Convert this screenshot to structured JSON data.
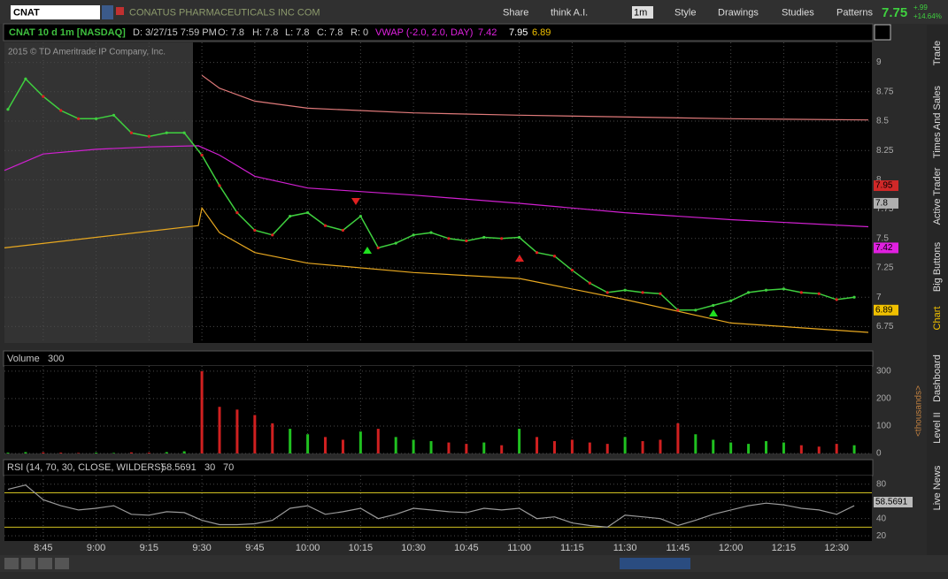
{
  "toolbar": {
    "symbol": "CNAT",
    "company": "CONATUS PHARMACEUTICALS INC COM",
    "buttons": [
      "Share",
      "think A.I.",
      "1m",
      "Style",
      "Drawings",
      "Studies",
      "Patterns"
    ],
    "last": "7.75",
    "change": "+.99",
    "change_pct": "+14.64%"
  },
  "header": {
    "title": "CNAT 10 d 1m [NASDAQ]",
    "date": "D: 3/27/15 7:59 PM",
    "open": "O: 7.8",
    "high": "H: 7.8",
    "low": "L: 7.8",
    "close": "C: 7.8",
    "range": "R: 0",
    "study": "VWAP (-2.0, 2.0, DAY)",
    "study_values": [
      7.42,
      7.95,
      6.89
    ]
  },
  "watermark": "2015 © TD Ameritrade IP Company, Inc.",
  "side_tabs": [
    "Trade",
    "Times And Sales",
    "Active Trader",
    "Big Buttons",
    "Chart",
    "Dashboard",
    "Level II",
    "Live News"
  ],
  "time_axis": {
    "xlim": [
      514,
      760
    ],
    "xticks": [
      {
        "value": 525,
        "label": "8:45"
      },
      {
        "value": 540,
        "label": "9:00"
      },
      {
        "value": 555,
        "label": "9:15"
      },
      {
        "value": 570,
        "label": "9:30"
      },
      {
        "value": 585,
        "label": "9:45"
      },
      {
        "value": 600,
        "label": "10:00"
      },
      {
        "value": 615,
        "label": "10:15"
      },
      {
        "value": 630,
        "label": "10:30"
      },
      {
        "value": 645,
        "label": "10:45"
      },
      {
        "value": 660,
        "label": "11:00"
      },
      {
        "value": 675,
        "label": "11:15"
      },
      {
        "value": 690,
        "label": "11:30"
      },
      {
        "value": 705,
        "label": "11:45"
      },
      {
        "value": 720,
        "label": "12:00"
      },
      {
        "value": 735,
        "label": "12:15"
      },
      {
        "value": 750,
        "label": "12:30"
      }
    ]
  },
  "price_panel": {
    "ylim": [
      6.61,
      9.17
    ],
    "yticks": [
      9,
      8.75,
      8.5,
      8.25,
      8,
      7.75,
      7.5,
      7.25,
      7,
      6.75
    ],
    "x": [
      515,
      520,
      525,
      530,
      535,
      540,
      545,
      550,
      555,
      560,
      565,
      570,
      575,
      580,
      585,
      590,
      595,
      600,
      605,
      610,
      615,
      620,
      625,
      630,
      635,
      640,
      645,
      650,
      655,
      660,
      665,
      670,
      675,
      680,
      685,
      690,
      695,
      700,
      705,
      710,
      715,
      720,
      725,
      730,
      735,
      740,
      745,
      750,
      755
    ],
    "close": [
      8.6,
      8.86,
      8.71,
      8.59,
      8.52,
      8.52,
      8.55,
      8.4,
      8.37,
      8.4,
      8.4,
      8.21,
      7.95,
      7.72,
      7.57,
      7.53,
      7.69,
      7.72,
      7.61,
      7.57,
      7.69,
      7.42,
      7.46,
      7.53,
      7.55,
      7.5,
      7.48,
      7.51,
      7.5,
      7.51,
      7.38,
      7.35,
      7.23,
      7.12,
      7.04,
      7.06,
      7.04,
      7.03,
      6.89,
      6.89,
      6.93,
      6.97,
      7.04,
      7.06,
      7.07,
      7.04,
      7.03,
      6.98,
      7.0
    ],
    "bands": [
      {
        "color": "#e07a7a",
        "x": [
          570,
          575,
          585,
          600,
          630,
          660,
          720,
          759
        ],
        "values": [
          8.89,
          8.78,
          8.67,
          8.61,
          8.57,
          8.55,
          8.52,
          8.51
        ]
      },
      {
        "color": "#d020d0",
        "x": [
          514,
          525,
          540,
          555,
          569,
          575,
          585,
          600,
          630,
          660,
          690,
          720,
          759
        ],
        "values": [
          8.08,
          8.22,
          8.26,
          8.28,
          8.29,
          8.21,
          8.03,
          7.93,
          7.87,
          7.8,
          7.72,
          7.66,
          7.6
        ]
      },
      {
        "color": "#e8a820",
        "x": [
          514,
          569,
          570,
          575,
          585,
          600,
          630,
          660,
          690,
          720,
          759
        ],
        "values": [
          7.42,
          7.61,
          7.76,
          7.55,
          7.38,
          7.29,
          7.21,
          7.16,
          6.98,
          6.78,
          6.7
        ]
      }
    ],
    "markers": [
      {
        "value": 7.95,
        "color": "#d02828"
      },
      {
        "value": 7.8,
        "color": "#b0b0b0"
      },
      {
        "value": 7.42,
        "color": "#e020e0"
      },
      {
        "value": 6.89,
        "color": "#f0c000"
      }
    ]
  },
  "volume_panel": {
    "title": "Volume",
    "title_value": "300",
    "unit": "<thousands>",
    "ylim": [
      0,
      319
    ],
    "yticks": [
      0,
      100,
      200,
      300
    ],
    "values": [
      3,
      5,
      4,
      3,
      2,
      3,
      2,
      4,
      3,
      5,
      8,
      300,
      170,
      160,
      140,
      110,
      90,
      70,
      60,
      50,
      80,
      90,
      60,
      50,
      45,
      40,
      35,
      40,
      30,
      90,
      60,
      45,
      50,
      40,
      35,
      60,
      45,
      50,
      110,
      70,
      50,
      40,
      35,
      45,
      40,
      30,
      25,
      35,
      30
    ]
  },
  "rsi_panel": {
    "title": "RSI (14, 70, 30, CLOSE, WILDERS)",
    "current": "58.5691",
    "levels": [
      30,
      70
    ],
    "ylim": [
      14,
      90
    ],
    "yticks": [
      20,
      40,
      60,
      80
    ],
    "values": [
      74,
      79,
      62,
      55,
      50,
      52,
      55,
      45,
      44,
      48,
      47,
      38,
      33,
      33,
      34,
      38,
      52,
      55,
      45,
      48,
      52,
      40,
      45,
      52,
      50,
      48,
      47,
      52,
      50,
      52,
      40,
      42,
      35,
      32,
      30,
      44,
      42,
      40,
      32,
      38,
      45,
      50,
      55,
      58,
      56,
      52,
      50,
      45,
      55
    ]
  }
}
